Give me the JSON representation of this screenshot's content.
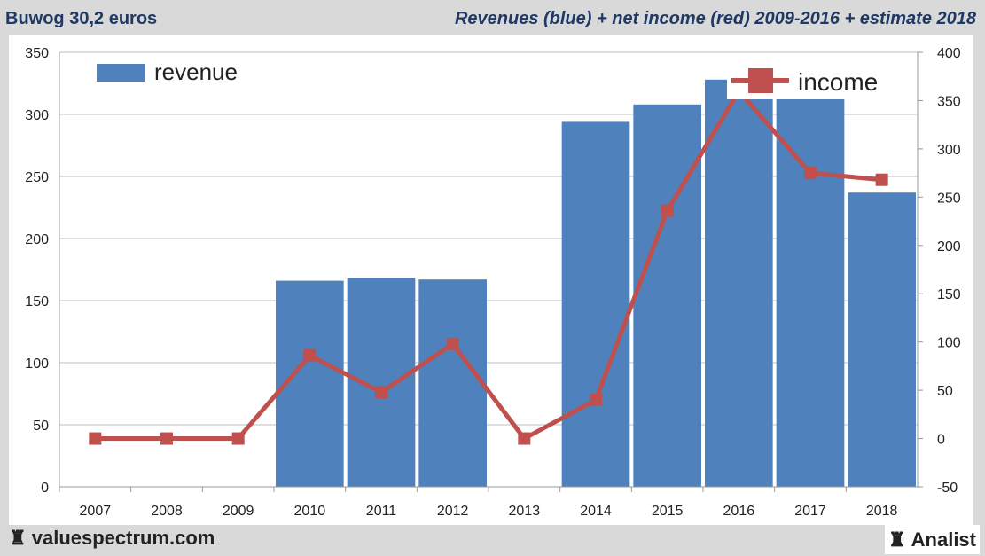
{
  "header": {
    "left": "Buwog 30,2 euros",
    "right": "Revenues (blue) + net income (red) 2009-2016 + estimate 2018"
  },
  "footer": {
    "left": "valuespectrum.com",
    "right": "Analist",
    "logo_icon": "rook-chess-icon"
  },
  "chart_data": {
    "type": "bar+line",
    "title": "Revenues (blue) + net income (red) 2009-2016 + estimate 2018",
    "categories": [
      "2007",
      "2008",
      "2009",
      "2010",
      "2011",
      "2012",
      "2013",
      "2014",
      "2015",
      "2016",
      "2017",
      "2018"
    ],
    "series": [
      {
        "name": "revenue",
        "type": "bar",
        "axis": "left",
        "color": "#4f81bd",
        "values": [
          null,
          null,
          null,
          166,
          168,
          167,
          null,
          294,
          308,
          328,
          313,
          237
        ]
      },
      {
        "name": "income",
        "type": "line",
        "axis": "right",
        "color": "#c0504d",
        "values": [
          0,
          0,
          0,
          86,
          48,
          98,
          0,
          40,
          236,
          360,
          275,
          268
        ]
      }
    ],
    "left_axis": {
      "ylim": [
        0,
        350
      ],
      "ticks": [
        "0",
        "50",
        "100",
        "150",
        "200",
        "250",
        "300",
        "350"
      ]
    },
    "right_axis": {
      "ylim": [
        -50,
        400
      ],
      "ticks": [
        "-50",
        "0",
        "50",
        "100",
        "150",
        "200",
        "250",
        "300",
        "350",
        "400"
      ]
    },
    "grid": true,
    "legend": [
      {
        "label": "revenue",
        "placement": "top-left"
      },
      {
        "label": "income",
        "placement": "top-right"
      }
    ]
  }
}
